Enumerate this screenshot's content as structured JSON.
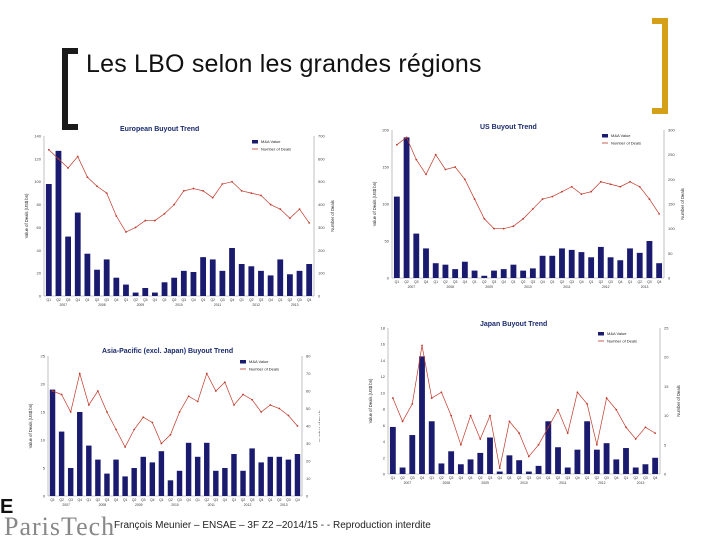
{
  "slide": {
    "title": "Les LBO selon les grandes régions",
    "footer": "François Meunier – ENSAE – 3F Z2 –2014/15 - - Reproduction interdite",
    "logo_mark": "E",
    "logo_text": "ParisTech"
  },
  "colors": {
    "bar": "#1a1a6e",
    "line": "#c0392b",
    "bracket_left": "#1a1a1a",
    "bracket_right": "#d4a017"
  },
  "chart_data": [
    {
      "type": "bar",
      "title": "European Buyout Trend",
      "ylabel": "Value of Deals (US$ bn)",
      "y2label": "Number of Deals",
      "legend": [
        "M&A Value",
        "Number of Deals"
      ],
      "yticks": [
        "0",
        "20",
        "40",
        "60",
        "80",
        "100",
        "120",
        "140"
      ],
      "y2ticks": [
        "0",
        "100",
        "200",
        "300",
        "400",
        "500",
        "600",
        "700"
      ],
      "ylim": [
        0,
        140
      ],
      "y2lim": [
        0,
        700
      ],
      "quarters": [
        "Q1",
        "Q2",
        "Q3",
        "Q4",
        "Q1",
        "Q2",
        "Q3",
        "Q4",
        "Q1",
        "Q2",
        "Q3",
        "Q4",
        "Q1",
        "Q2",
        "Q3",
        "Q4",
        "Q1",
        "Q2",
        "Q3",
        "Q4",
        "Q1",
        "Q2",
        "Q3",
        "Q4",
        "Q1",
        "Q2",
        "Q3",
        "Q4"
      ],
      "years": [
        "2007",
        "2008",
        "2009",
        "2010",
        "2011",
        "2012",
        "2013"
      ],
      "values": [
        98,
        127,
        52,
        73,
        37,
        23,
        32,
        16,
        10,
        3,
        7,
        3,
        12,
        16,
        22,
        21,
        34,
        32,
        22,
        42,
        28,
        26,
        22,
        18,
        32,
        19,
        22,
        28
      ],
      "deals": [
        640,
        600,
        560,
        610,
        520,
        480,
        450,
        350,
        280,
        300,
        330,
        330,
        360,
        400,
        460,
        470,
        460,
        430,
        490,
        500,
        460,
        450,
        440,
        400,
        380,
        340,
        380,
        320
      ]
    },
    {
      "type": "bar",
      "title": "US Buyout Trend",
      "ylabel": "Value of Deals (US$ bn)",
      "y2label": "Number of Deals",
      "legend": [
        "M&A Value",
        "Number of Deals"
      ],
      "yticks": [
        "0",
        "50",
        "100",
        "150",
        "200"
      ],
      "y2ticks": [
        "0",
        "50",
        "100",
        "150",
        "200",
        "250",
        "300"
      ],
      "ylim": [
        0,
        200
      ],
      "y2lim": [
        0,
        300
      ],
      "quarters": [
        "Q1",
        "Q2",
        "Q3",
        "Q4",
        "Q1",
        "Q2",
        "Q3",
        "Q4",
        "Q1",
        "Q2",
        "Q3",
        "Q4",
        "Q1",
        "Q2",
        "Q3",
        "Q4",
        "Q1",
        "Q2",
        "Q3",
        "Q4",
        "Q1",
        "Q2",
        "Q3",
        "Q4",
        "Q1",
        "Q2",
        "Q3",
        "Q4"
      ],
      "years": [
        "2007",
        "2008",
        "2009",
        "2010",
        "2011",
        "2012",
        "2013"
      ],
      "values": [
        110,
        190,
        60,
        40,
        20,
        18,
        12,
        22,
        10,
        3,
        10,
        12,
        18,
        10,
        13,
        30,
        30,
        40,
        38,
        35,
        28,
        42,
        28,
        24,
        40,
        34,
        50,
        20
      ],
      "deals": [
        270,
        285,
        240,
        210,
        250,
        220,
        225,
        200,
        160,
        120,
        100,
        100,
        105,
        120,
        140,
        160,
        165,
        175,
        185,
        170,
        175,
        195,
        190,
        185,
        195,
        185,
        160,
        130
      ]
    },
    {
      "type": "bar",
      "title": "Asia-Pacific (excl. Japan) Buyout Trend",
      "ylabel": "Value of Deals (US$ bn)",
      "y2label": "Number of Deals",
      "legend": [
        "M&A Value",
        "Number of Deals"
      ],
      "yticks": [
        "0",
        "5",
        "10",
        "15",
        "20",
        "25"
      ],
      "y2ticks": [
        "0",
        "10",
        "20",
        "30",
        "40",
        "50",
        "60",
        "70",
        "80"
      ],
      "ylim": [
        0,
        25
      ],
      "y2lim": [
        0,
        80
      ],
      "quarters": [
        "Q1",
        "Q2",
        "Q3",
        "Q4",
        "Q1",
        "Q2",
        "Q3",
        "Q4",
        "Q1",
        "Q2",
        "Q3",
        "Q4",
        "Q1",
        "Q2",
        "Q3",
        "Q4",
        "Q1",
        "Q2",
        "Q3",
        "Q4",
        "Q1",
        "Q2",
        "Q3",
        "Q4",
        "Q1",
        "Q2",
        "Q3",
        "Q4"
      ],
      "years": [
        "2007",
        "2008",
        "2009",
        "2010",
        "2011",
        "2012",
        "2013"
      ],
      "values": [
        19,
        11.5,
        5,
        15,
        9,
        6.5,
        4,
        6.5,
        3.5,
        5,
        7,
        6,
        8,
        2.8,
        4.5,
        9.5,
        7,
        9.5,
        4.5,
        5,
        7.5,
        4.5,
        8.5,
        6,
        7,
        7,
        6.5,
        7.5
      ],
      "deals": [
        60,
        58,
        48,
        70,
        52,
        60,
        48,
        38,
        28,
        38,
        45,
        42,
        30,
        35,
        48,
        57,
        54,
        70,
        60,
        65,
        52,
        58,
        55,
        48,
        52,
        50,
        46,
        40
      ]
    },
    {
      "type": "bar",
      "title": "Japan Buyout Trend",
      "ylabel": "Value of Deals (US$ bn)",
      "y2label": "Number of Deals",
      "legend": [
        "M&A Value",
        "Number of Deals"
      ],
      "yticks": [
        "0",
        "2",
        "4",
        "6",
        "8",
        "10",
        "12",
        "14",
        "16",
        "18"
      ],
      "y2ticks": [
        "0",
        "5",
        "10",
        "15",
        "20",
        "25"
      ],
      "ylim": [
        0,
        18
      ],
      "y2lim": [
        0,
        25
      ],
      "quarters": [
        "Q1",
        "Q2",
        "Q3",
        "Q4",
        "Q1",
        "Q2",
        "Q3",
        "Q4",
        "Q1",
        "Q2",
        "Q3",
        "Q4",
        "Q1",
        "Q2",
        "Q3",
        "Q4",
        "Q1",
        "Q2",
        "Q3",
        "Q4",
        "Q1",
        "Q2",
        "Q3",
        "Q4",
        "Q1",
        "Q2",
        "Q3",
        "Q4"
      ],
      "years": [
        "2007",
        "2008",
        "2009",
        "2010",
        "2011",
        "2012",
        "2013"
      ],
      "values": [
        5.8,
        0.8,
        4.8,
        14.5,
        6.5,
        1.3,
        2.8,
        1.2,
        1.8,
        2.6,
        4.5,
        0.3,
        2.3,
        1.7,
        0.3,
        1,
        6.5,
        3.3,
        0.8,
        3,
        6.5,
        3,
        3.8,
        1.8,
        3.2,
        0.8,
        1.2,
        2
      ],
      "deals": [
        13,
        9,
        12,
        22,
        13,
        14,
        10,
        5,
        10,
        6,
        10,
        1,
        9,
        7,
        3,
        5,
        8,
        11,
        7,
        14,
        12,
        5,
        13,
        11,
        8,
        6,
        8,
        7
      ]
    }
  ]
}
